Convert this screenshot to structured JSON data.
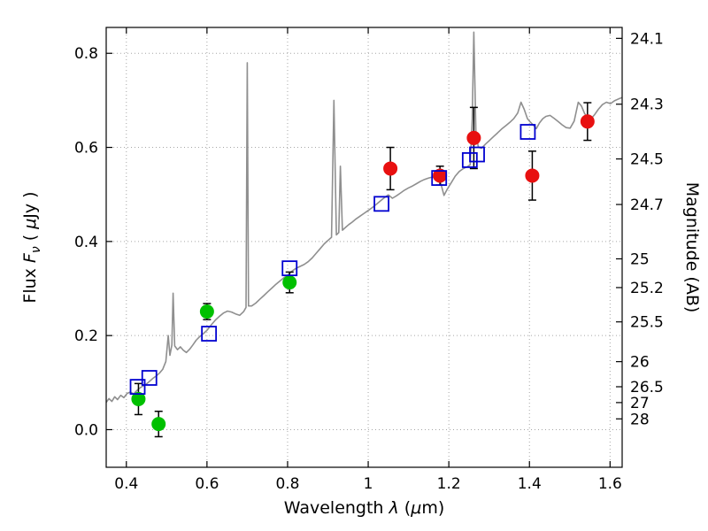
{
  "figure": {
    "background": "#ffffff",
    "frame_color": "#000000",
    "grid_color": "#a6a6a6"
  },
  "chart_data": {
    "type": "line+scatter",
    "title": "",
    "grid": true,
    "xlabel_parts": [
      {
        "t": "Wavelength  "
      },
      {
        "t": "λ",
        "i": true
      },
      {
        "t": " ("
      },
      {
        "t": "μ",
        "i": true
      },
      {
        "t": "m)"
      }
    ],
    "ylabel_left_parts": [
      {
        "t": "Flux  "
      },
      {
        "t": "F",
        "i": true
      },
      {
        "t": "ν",
        "i": true,
        "sub": true
      },
      {
        "t": " ( "
      },
      {
        "t": "μ",
        "i": true
      },
      {
        "t": "Jy )"
      }
    ],
    "ylabel_right": "Magnitude (AB)",
    "xlim": [
      0.35,
      1.63
    ],
    "ylim": [
      -0.08,
      0.855
    ],
    "x_ticks": {
      "values": [
        0.4,
        0.6,
        0.8,
        1.0,
        1.2,
        1.4,
        1.6
      ],
      "labels": [
        "0.4",
        "0.6",
        "0.8",
        "1",
        "1.2",
        "1.4",
        "1.6"
      ]
    },
    "y_ticks_flux": {
      "values": [
        0.0,
        0.2,
        0.4,
        0.6,
        0.8
      ],
      "labels": [
        "0.0",
        "0.2",
        "0.4",
        "0.6",
        "0.8"
      ]
    },
    "y_ticks_magnitude": {
      "values": [
        24.1,
        24.3,
        24.5,
        24.7,
        25,
        25.2,
        25.5,
        26,
        26.5,
        27,
        28
      ],
      "labels": [
        "24.1",
        "24.3",
        "24.5",
        "24.7",
        "25",
        "25.2",
        "25.5",
        "26",
        "26.5",
        "27",
        "28"
      ]
    },
    "spectrum": {
      "name": "model-spectrum",
      "color": "#8f8f8f",
      "points": [
        [
          0.35,
          0.058
        ],
        [
          0.357,
          0.066
        ],
        [
          0.364,
          0.06
        ],
        [
          0.371,
          0.07
        ],
        [
          0.378,
          0.064
        ],
        [
          0.386,
          0.073
        ],
        [
          0.394,
          0.068
        ],
        [
          0.402,
          0.077
        ],
        [
          0.41,
          0.08
        ],
        [
          0.418,
          0.076
        ],
        [
          0.426,
          0.083
        ],
        [
          0.434,
          0.089
        ],
        [
          0.442,
          0.093
        ],
        [
          0.45,
          0.097
        ],
        [
          0.458,
          0.103
        ],
        [
          0.466,
          0.109
        ],
        [
          0.474,
          0.114
        ],
        [
          0.482,
          0.12
        ],
        [
          0.49,
          0.128
        ],
        [
          0.498,
          0.145
        ],
        [
          0.504,
          0.2
        ],
        [
          0.508,
          0.158
        ],
        [
          0.513,
          0.18
        ],
        [
          0.516,
          0.29
        ],
        [
          0.52,
          0.178
        ],
        [
          0.527,
          0.17
        ],
        [
          0.534,
          0.176
        ],
        [
          0.541,
          0.169
        ],
        [
          0.549,
          0.164
        ],
        [
          0.557,
          0.171
        ],
        [
          0.565,
          0.18
        ],
        [
          0.573,
          0.19
        ],
        [
          0.581,
          0.197
        ],
        [
          0.591,
          0.204
        ],
        [
          0.601,
          0.212
        ],
        [
          0.611,
          0.223
        ],
        [
          0.621,
          0.233
        ],
        [
          0.631,
          0.241
        ],
        [
          0.641,
          0.248
        ],
        [
          0.651,
          0.252
        ],
        [
          0.661,
          0.25
        ],
        [
          0.671,
          0.246
        ],
        [
          0.681,
          0.243
        ],
        [
          0.691,
          0.251
        ],
        [
          0.697,
          0.26
        ],
        [
          0.7,
          0.78
        ],
        [
          0.703,
          0.263
        ],
        [
          0.711,
          0.263
        ],
        [
          0.721,
          0.269
        ],
        [
          0.731,
          0.277
        ],
        [
          0.741,
          0.285
        ],
        [
          0.751,
          0.293
        ],
        [
          0.761,
          0.301
        ],
        [
          0.771,
          0.309
        ],
        [
          0.781,
          0.316
        ],
        [
          0.791,
          0.323
        ],
        [
          0.801,
          0.329
        ],
        [
          0.811,
          0.337
        ],
        [
          0.821,
          0.343
        ],
        [
          0.831,
          0.347
        ],
        [
          0.841,
          0.351
        ],
        [
          0.851,
          0.357
        ],
        [
          0.861,
          0.365
        ],
        [
          0.871,
          0.375
        ],
        [
          0.881,
          0.385
        ],
        [
          0.891,
          0.395
        ],
        [
          0.901,
          0.403
        ],
        [
          0.909,
          0.409
        ],
        [
          0.915,
          0.7
        ],
        [
          0.921,
          0.414
        ],
        [
          0.927,
          0.419
        ],
        [
          0.931,
          0.56
        ],
        [
          0.936,
          0.424
        ],
        [
          0.944,
          0.43
        ],
        [
          0.952,
          0.436
        ],
        [
          0.96,
          0.441
        ],
        [
          0.97,
          0.448
        ],
        [
          0.98,
          0.454
        ],
        [
          0.99,
          0.46
        ],
        [
          1.0,
          0.466
        ],
        [
          1.01,
          0.472
        ],
        [
          1.02,
          0.479
        ],
        [
          1.03,
          0.486
        ],
        [
          1.04,
          0.493
        ],
        [
          1.05,
          0.499
        ],
        [
          1.06,
          0.492
        ],
        [
          1.07,
          0.497
        ],
        [
          1.08,
          0.503
        ],
        [
          1.09,
          0.509
        ],
        [
          1.1,
          0.514
        ],
        [
          1.11,
          0.518
        ],
        [
          1.12,
          0.523
        ],
        [
          1.13,
          0.528
        ],
        [
          1.14,
          0.532
        ],
        [
          1.15,
          0.535
        ],
        [
          1.16,
          0.537
        ],
        [
          1.17,
          0.533
        ],
        [
          1.18,
          0.524
        ],
        [
          1.188,
          0.498
        ],
        [
          1.196,
          0.511
        ],
        [
          1.206,
          0.525
        ],
        [
          1.216,
          0.539
        ],
        [
          1.226,
          0.549
        ],
        [
          1.236,
          0.555
        ],
        [
          1.246,
          0.559
        ],
        [
          1.253,
          0.563
        ],
        [
          1.258,
          0.66
        ],
        [
          1.262,
          0.845
        ],
        [
          1.267,
          0.635
        ],
        [
          1.273,
          0.601
        ],
        [
          1.281,
          0.598
        ],
        [
          1.291,
          0.607
        ],
        [
          1.301,
          0.615
        ],
        [
          1.311,
          0.623
        ],
        [
          1.321,
          0.631
        ],
        [
          1.331,
          0.639
        ],
        [
          1.341,
          0.646
        ],
        [
          1.351,
          0.653
        ],
        [
          1.361,
          0.661
        ],
        [
          1.371,
          0.673
        ],
        [
          1.379,
          0.696
        ],
        [
          1.387,
          0.681
        ],
        [
          1.395,
          0.661
        ],
        [
          1.401,
          0.655
        ],
        [
          1.409,
          0.648
        ],
        [
          1.417,
          0.64
        ],
        [
          1.425,
          0.652
        ],
        [
          1.433,
          0.661
        ],
        [
          1.441,
          0.666
        ],
        [
          1.451,
          0.668
        ],
        [
          1.461,
          0.662
        ],
        [
          1.471,
          0.655
        ],
        [
          1.481,
          0.648
        ],
        [
          1.491,
          0.642
        ],
        [
          1.501,
          0.641
        ],
        [
          1.511,
          0.656
        ],
        [
          1.521,
          0.696
        ],
        [
          1.529,
          0.688
        ],
        [
          1.537,
          0.672
        ],
        [
          1.545,
          0.662
        ],
        [
          1.553,
          0.661
        ],
        [
          1.561,
          0.669
        ],
        [
          1.571,
          0.681
        ],
        [
          1.581,
          0.691
        ],
        [
          1.591,
          0.696
        ],
        [
          1.601,
          0.693
        ],
        [
          1.611,
          0.699
        ],
        [
          1.621,
          0.703
        ],
        [
          1.63,
          0.706
        ]
      ]
    },
    "series": [
      {
        "name": "green-circles",
        "marker": "circle-filled",
        "color": "#00c000",
        "errorbar_color": "#000000",
        "points": [
          {
            "x": 0.43,
            "y": 0.065,
            "yerr": 0.033
          },
          {
            "x": 0.48,
            "y": 0.012,
            "yerr": 0.027
          },
          {
            "x": 0.6,
            "y": 0.251,
            "yerr": 0.017
          },
          {
            "x": 0.805,
            "y": 0.313,
            "yerr": 0.022
          }
        ]
      },
      {
        "name": "red-circles",
        "marker": "circle-filled",
        "color": "#e81010",
        "errorbar_color": "#000000",
        "points": [
          {
            "x": 1.055,
            "y": 0.555,
            "yerr": 0.045
          },
          {
            "x": 1.178,
            "y": 0.54,
            "yerr": 0.02
          },
          {
            "x": 1.262,
            "y": 0.62,
            "yerr": 0.065
          },
          {
            "x": 1.407,
            "y": 0.54,
            "yerr": 0.052
          },
          {
            "x": 1.544,
            "y": 0.655,
            "yerr": 0.04
          }
        ]
      },
      {
        "name": "blue-open-squares",
        "marker": "square-open",
        "color": "#0000d0",
        "errorbar_color": "#000000",
        "points": [
          {
            "x": 0.428,
            "y": 0.091
          },
          {
            "x": 0.457,
            "y": 0.11
          },
          {
            "x": 0.605,
            "y": 0.204
          },
          {
            "x": 0.805,
            "y": 0.343
          },
          {
            "x": 1.033,
            "y": 0.48
          },
          {
            "x": 1.176,
            "y": 0.535
          },
          {
            "x": 1.252,
            "y": 0.573
          },
          {
            "x": 1.27,
            "y": 0.585
          },
          {
            "x": 1.396,
            "y": 0.633
          }
        ]
      }
    ]
  }
}
